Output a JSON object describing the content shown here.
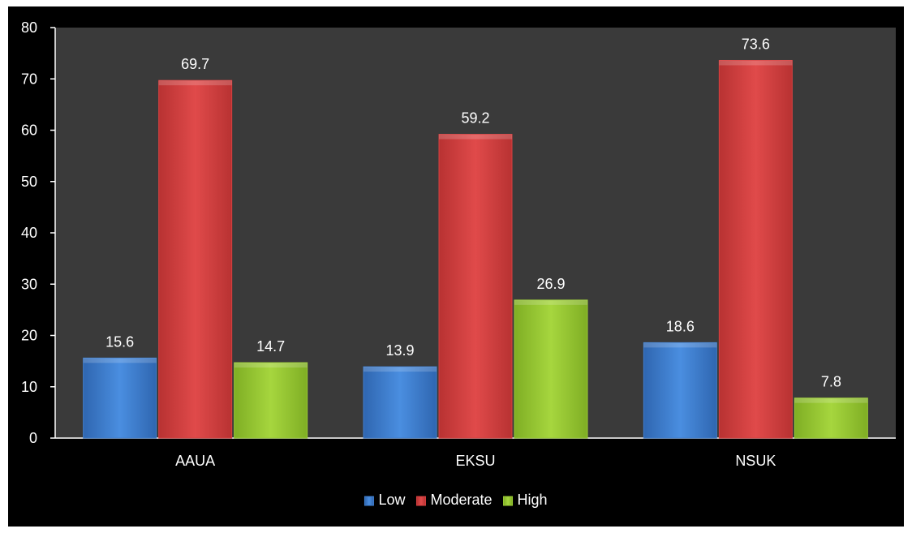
{
  "chart_data": {
    "type": "bar",
    "categories": [
      "AAUA",
      "EKSU",
      "NSUK"
    ],
    "series": [
      {
        "name": "Low",
        "values": [
          15.6,
          13.9,
          18.6
        ],
        "color": "#3f7fd0"
      },
      {
        "name": "Moderate",
        "values": [
          69.7,
          59.2,
          73.6
        ],
        "color": "#d84040"
      },
      {
        "name": "High",
        "values": [
          14.7,
          26.9,
          7.8
        ],
        "color": "#9acb34"
      }
    ],
    "value_labels": [
      [
        "15.6",
        "13.9",
        "18.6"
      ],
      [
        "69.7",
        "59.2",
        "73.6"
      ],
      [
        "14.7",
        "26.9",
        "7.8"
      ]
    ],
    "ylim": [
      0,
      80
    ],
    "yticks": [
      0,
      10,
      20,
      30,
      40,
      50,
      60,
      70,
      80
    ],
    "ytick_labels": [
      "0",
      "10",
      "20",
      "30",
      "40",
      "50",
      "60",
      "70",
      "80"
    ],
    "grid": false,
    "legend_position": "bottom",
    "plot_background": "#3a3a3a",
    "background": "#000000"
  }
}
